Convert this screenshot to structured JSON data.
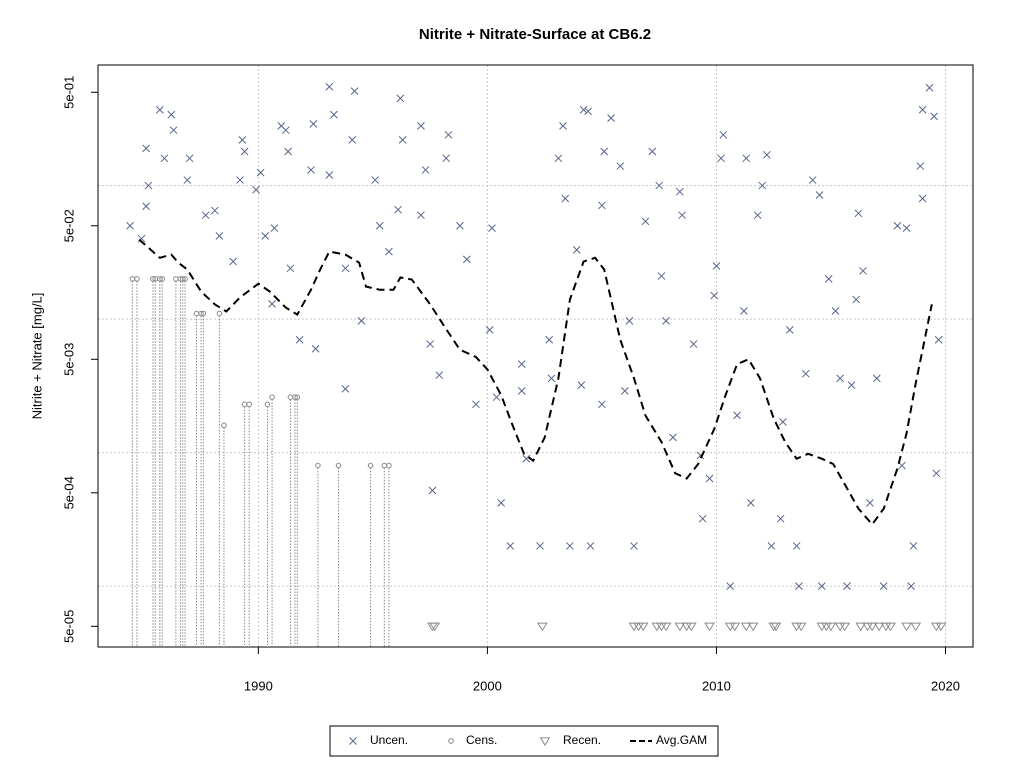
{
  "chart_data": {
    "type": "scatter",
    "title": "Nitrite + Nitrate-Surface at CB6.2",
    "y_label": "Nitrite + Nitrate [mg/L]",
    "log_y": true,
    "grid": true,
    "legend": "bottom",
    "xlim": [
      1983.0,
      2021.2
    ],
    "ylim": [
      3.5e-05,
      0.8
    ],
    "xticks": [
      1990,
      2000,
      2010,
      2020
    ],
    "yticks": [
      {
        "value": 0.5,
        "label": "5e-01"
      },
      {
        "value": 0.05,
        "label": "5e-02"
      },
      {
        "value": 0.005,
        "label": "5e-03"
      },
      {
        "value": 0.0005,
        "label": "5e-04"
      },
      {
        "value": 5e-05,
        "label": "5e-05"
      }
    ],
    "ygrid": [
      0.1,
      0.01,
      0.001,
      0.0001
    ],
    "series": [
      {
        "name": "Uncen.",
        "marker": "x",
        "color": "#56668a",
        "x": [
          1984.4,
          1984.9,
          1985.1,
          1985.2,
          1985.1,
          1985.7,
          1986.2,
          1986.3,
          1985.9,
          1987.0,
          1986.9,
          1987.7,
          1988.1,
          1988.3,
          1988.9,
          1989.2,
          1989.4,
          1989.3,
          1989.9,
          1990.1,
          1990.3,
          1990.7,
          1991.0,
          1991.3,
          1991.2,
          1991.4,
          1990.6,
          1992.4,
          1992.3,
          1991.8,
          1992.5,
          1993.1,
          1993.1,
          1993.3,
          1993.8,
          1994.2,
          1994.1,
          1993.8,
          1994.5,
          1995.1,
          1995.3,
          1995.7,
          1996.2,
          1996.3,
          1996.1,
          1997.1,
          1997.3,
          1997.1,
          1998.3,
          1998.2,
          1998.8,
          1997.5,
          1997.9,
          1997.6,
          1999.1,
          1999.5,
          2000.2,
          2000.1,
          2000.4,
          2000.6,
          2001.0,
          2001.5,
          2001.5,
          2001.7,
          2002.3,
          2002.8,
          2002.7,
          2003.1,
          2003.3,
          2003.4,
          2003.6,
          2003.9,
          2004.2,
          2004.4,
          2004.1,
          2004.5,
          2005.0,
          2005.1,
          2005.4,
          2005.0,
          2006.0,
          2005.8,
          2006.4,
          2006.2,
          2006.9,
          2007.2,
          2007.5,
          2007.6,
          2007.8,
          2008.1,
          2008.5,
          2008.4,
          2009.0,
          2009.3,
          2009.4,
          2009.7,
          2009.9,
          2010.0,
          2010.2,
          2010.3,
          2010.6,
          2010.9,
          2011.2,
          2011.3,
          2011.5,
          2011.8,
          2012.0,
          2012.2,
          2012.4,
          2012.8,
          2012.9,
          2013.2,
          2013.5,
          2013.6,
          2013.9,
          2014.2,
          2014.5,
          2014.6,
          2014.9,
          2015.2,
          2015.4,
          2015.7,
          2015.9,
          2016.1,
          2016.2,
          2016.4,
          2016.7,
          2017.0,
          2017.3,
          2017.9,
          2018.1,
          2018.3,
          2018.5,
          2018.6,
          2018.9,
          2019.0,
          2019.0,
          2019.3,
          2019.5,
          2019.6,
          2019.7
        ],
        "values": [
          0.05,
          0.04,
          0.19,
          0.1,
          0.07,
          0.37,
          0.34,
          0.26,
          0.16,
          0.16,
          0.11,
          0.06,
          0.065,
          0.042,
          0.027,
          0.11,
          0.18,
          0.22,
          0.093,
          0.125,
          0.042,
          0.048,
          0.28,
          0.18,
          0.26,
          0.024,
          0.013,
          0.29,
          0.131,
          0.007,
          0.006,
          0.55,
          0.12,
          0.34,
          0.024,
          0.51,
          0.22,
          0.003,
          0.0097,
          0.11,
          0.05,
          0.032,
          0.45,
          0.22,
          0.066,
          0.28,
          0.131,
          0.06,
          0.24,
          0.16,
          0.05,
          0.0065,
          0.0038,
          0.00052,
          0.028,
          0.0023,
          0.048,
          0.0083,
          0.0026,
          0.00042,
          0.0002,
          0.0046,
          0.0029,
          0.0009,
          0.0002,
          0.0036,
          0.007,
          0.16,
          0.28,
          0.08,
          0.0002,
          0.033,
          0.37,
          0.36,
          0.0032,
          0.0002,
          0.071,
          0.18,
          0.32,
          0.0023,
          0.0029,
          0.14,
          0.0002,
          0.0097,
          0.054,
          0.18,
          0.1,
          0.021,
          0.0097,
          0.0013,
          0.06,
          0.09,
          0.0065,
          0.00095,
          0.00032,
          0.00064,
          0.015,
          0.025,
          0.16,
          0.24,
          0.0001,
          0.0019,
          0.0115,
          0.16,
          0.00042,
          0.06,
          0.1,
          0.17,
          0.0002,
          0.00032,
          0.0017,
          0.0083,
          0.0002,
          0.0001,
          0.0039,
          0.11,
          0.085,
          0.0001,
          0.02,
          0.0115,
          0.0036,
          0.0001,
          0.0032,
          0.014,
          0.062,
          0.023,
          0.00042,
          0.0036,
          0.0001,
          0.05,
          0.0008,
          0.048,
          0.0001,
          0.0002,
          0.14,
          0.08,
          0.37,
          0.54,
          0.33,
          0.0007,
          0.007
        ]
      },
      {
        "name": "Cens.",
        "marker": "circle",
        "color": "#8a8a8a",
        "x": [
          1984.5,
          1984.7,
          1985.4,
          1985.5,
          1985.7,
          1985.8,
          1986.4,
          1986.6,
          1986.7,
          1986.8,
          1987.3,
          1987.5,
          1987.6,
          1988.3,
          1988.5,
          1989.4,
          1989.6,
          1990.4,
          1990.6,
          1991.4,
          1991.6,
          1991.7,
          1992.6,
          1993.5,
          1994.9,
          1995.5,
          1995.7
        ],
        "values": [
          0.02,
          0.02,
          0.02,
          0.02,
          0.02,
          0.02,
          0.02,
          0.02,
          0.02,
          0.02,
          0.011,
          0.011,
          0.011,
          0.011,
          0.0016,
          0.0023,
          0.0023,
          0.0023,
          0.0026,
          0.0026,
          0.0026,
          0.0026,
          0.0008,
          0.0008,
          0.0008,
          0.0008,
          0.0008
        ]
      },
      {
        "name": "Recen.",
        "marker": "triangle",
        "color": "#8a8a8a",
        "x": [
          1997.6,
          1997.7,
          2002.4,
          2006.4,
          2006.6,
          2006.8,
          2007.4,
          2007.6,
          2007.8,
          2008.4,
          2008.7,
          2008.9,
          2009.7,
          2010.6,
          2010.8,
          2011.3,
          2011.6,
          2012.5,
          2012.6,
          2013.5,
          2013.7,
          2014.6,
          2014.8,
          2015.0,
          2015.4,
          2015.6,
          2016.3,
          2016.6,
          2016.8,
          2017.1,
          2017.4,
          2017.6,
          2018.3,
          2018.7,
          2019.6,
          2019.8
        ],
        "values": [
          5e-05,
          5e-05,
          5e-05,
          5e-05,
          5e-05,
          5e-05,
          5e-05,
          5e-05,
          5e-05,
          5e-05,
          5e-05,
          5e-05,
          5e-05,
          5e-05,
          5e-05,
          5e-05,
          5e-05,
          5e-05,
          5e-05,
          5e-05,
          5e-05,
          5e-05,
          5e-05,
          5e-05,
          5e-05,
          5e-05,
          5e-05,
          5e-05,
          5e-05,
          5e-05,
          5e-05,
          5e-05,
          5e-05,
          5e-05,
          5e-05,
          5e-05
        ]
      },
      {
        "name": "Avg.GAM",
        "marker": "dashed-line",
        "color": "#000000",
        "x": [
          1984.8,
          1985.3,
          1985.7,
          1986.2,
          1986.5,
          1986.9,
          1987.5,
          1988.1,
          1988.6,
          1989.2,
          1990.0,
          1990.5,
          1991.2,
          1991.7,
          1992.3,
          1992.7,
          1993.1,
          1993.8,
          1994.4,
          1994.7,
          1995.3,
          1995.9,
          1996.2,
          1996.7,
          1997.5,
          1998.2,
          1998.8,
          1999.5,
          2000.0,
          2000.6,
          2001.1,
          2001.6,
          2002.0,
          2002.5,
          2003.1,
          2003.6,
          2004.2,
          2004.7,
          2005.1,
          2005.4,
          2005.8,
          2006.4,
          2006.9,
          2007.6,
          2008.2,
          2008.7,
          2009.2,
          2009.9,
          2010.4,
          2010.9,
          2011.4,
          2011.9,
          2012.5,
          2013.0,
          2013.5,
          2014.0,
          2014.6,
          2015.1,
          2015.7,
          2016.2,
          2016.8,
          2017.3,
          2017.9,
          2018.3,
          2018.7,
          2019.0,
          2019.4
        ],
        "values": [
          0.0394,
          0.0331,
          0.0288,
          0.0304,
          0.0265,
          0.0235,
          0.0161,
          0.0129,
          0.0114,
          0.0145,
          0.0184,
          0.0161,
          0.0122,
          0.0108,
          0.0166,
          0.0235,
          0.032,
          0.0304,
          0.0265,
          0.0175,
          0.0166,
          0.0166,
          0.0205,
          0.0198,
          0.0129,
          0.0084,
          0.0059,
          0.0052,
          0.0042,
          0.0027,
          0.0016,
          0.00098,
          0.00087,
          0.0013,
          0.0036,
          0.014,
          0.027,
          0.0288,
          0.0235,
          0.014,
          0.007,
          0.0036,
          0.0019,
          0.0012,
          0.0007,
          0.00064,
          0.00082,
          0.0015,
          0.0027,
          0.0046,
          0.005,
          0.0036,
          0.0018,
          0.0012,
          0.0009,
          0.00098,
          0.0009,
          0.00082,
          0.00054,
          0.00038,
          0.00029,
          0.00038,
          0.00076,
          0.0014,
          0.0033,
          0.0059,
          0.0129
        ]
      }
    ]
  }
}
